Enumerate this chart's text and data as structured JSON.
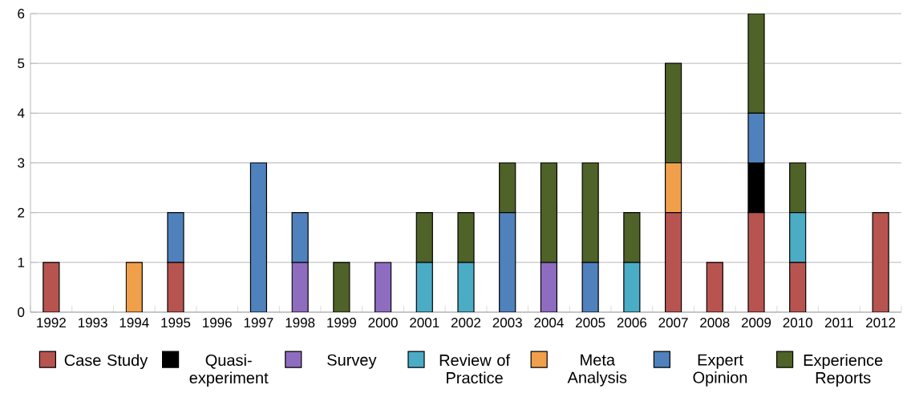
{
  "chart_data": {
    "type": "bar",
    "stacked": true,
    "categories": [
      "1992",
      "1993",
      "1994",
      "1995",
      "1996",
      "1997",
      "1998",
      "1999",
      "2000",
      "2001",
      "2002",
      "2003",
      "2004",
      "2005",
      "2006",
      "2007",
      "2008",
      "2009",
      "2010",
      "2011",
      "2012"
    ],
    "series": [
      {
        "name": "Case Study",
        "color": "#b85450",
        "values": [
          1,
          0,
          0,
          1,
          0,
          0,
          0,
          0,
          0,
          0,
          0,
          0,
          0,
          0,
          0,
          2,
          1,
          2,
          1,
          0,
          2
        ]
      },
      {
        "name": "Quasi-experiment",
        "color": "#000000",
        "values": [
          0,
          0,
          0,
          0,
          0,
          0,
          0,
          0,
          0,
          0,
          0,
          0,
          0,
          0,
          0,
          0,
          0,
          1,
          0,
          0,
          0
        ]
      },
      {
        "name": "Survey",
        "color": "#8e6cbf",
        "values": [
          0,
          0,
          0,
          0,
          0,
          0,
          1,
          0,
          1,
          0,
          0,
          0,
          1,
          0,
          0,
          0,
          0,
          0,
          0,
          0,
          0
        ]
      },
      {
        "name": "Review of Practice",
        "color": "#4bacc6",
        "values": [
          0,
          0,
          0,
          0,
          0,
          0,
          0,
          0,
          0,
          1,
          1,
          0,
          0,
          0,
          1,
          0,
          0,
          0,
          1,
          0,
          0
        ]
      },
      {
        "name": "Meta Analysis",
        "color": "#f0a04b",
        "values": [
          0,
          0,
          1,
          0,
          0,
          0,
          0,
          0,
          0,
          0,
          0,
          0,
          0,
          0,
          0,
          1,
          0,
          0,
          0,
          0,
          0
        ]
      },
      {
        "name": "Expert Opinion",
        "color": "#4f81bd",
        "values": [
          0,
          0,
          0,
          1,
          0,
          3,
          1,
          0,
          0,
          0,
          0,
          2,
          0,
          1,
          0,
          0,
          0,
          1,
          0,
          0,
          0
        ]
      },
      {
        "name": "Experience Reports",
        "color": "#4f6228",
        "values": [
          0,
          0,
          0,
          0,
          0,
          0,
          0,
          1,
          0,
          1,
          1,
          1,
          2,
          2,
          1,
          2,
          0,
          2,
          1,
          0,
          0
        ]
      }
    ],
    "ylim": [
      0,
      6
    ],
    "yticks": [
      0,
      1,
      2,
      3,
      4,
      5,
      6
    ],
    "grid": "y",
    "legend": "bottom"
  }
}
